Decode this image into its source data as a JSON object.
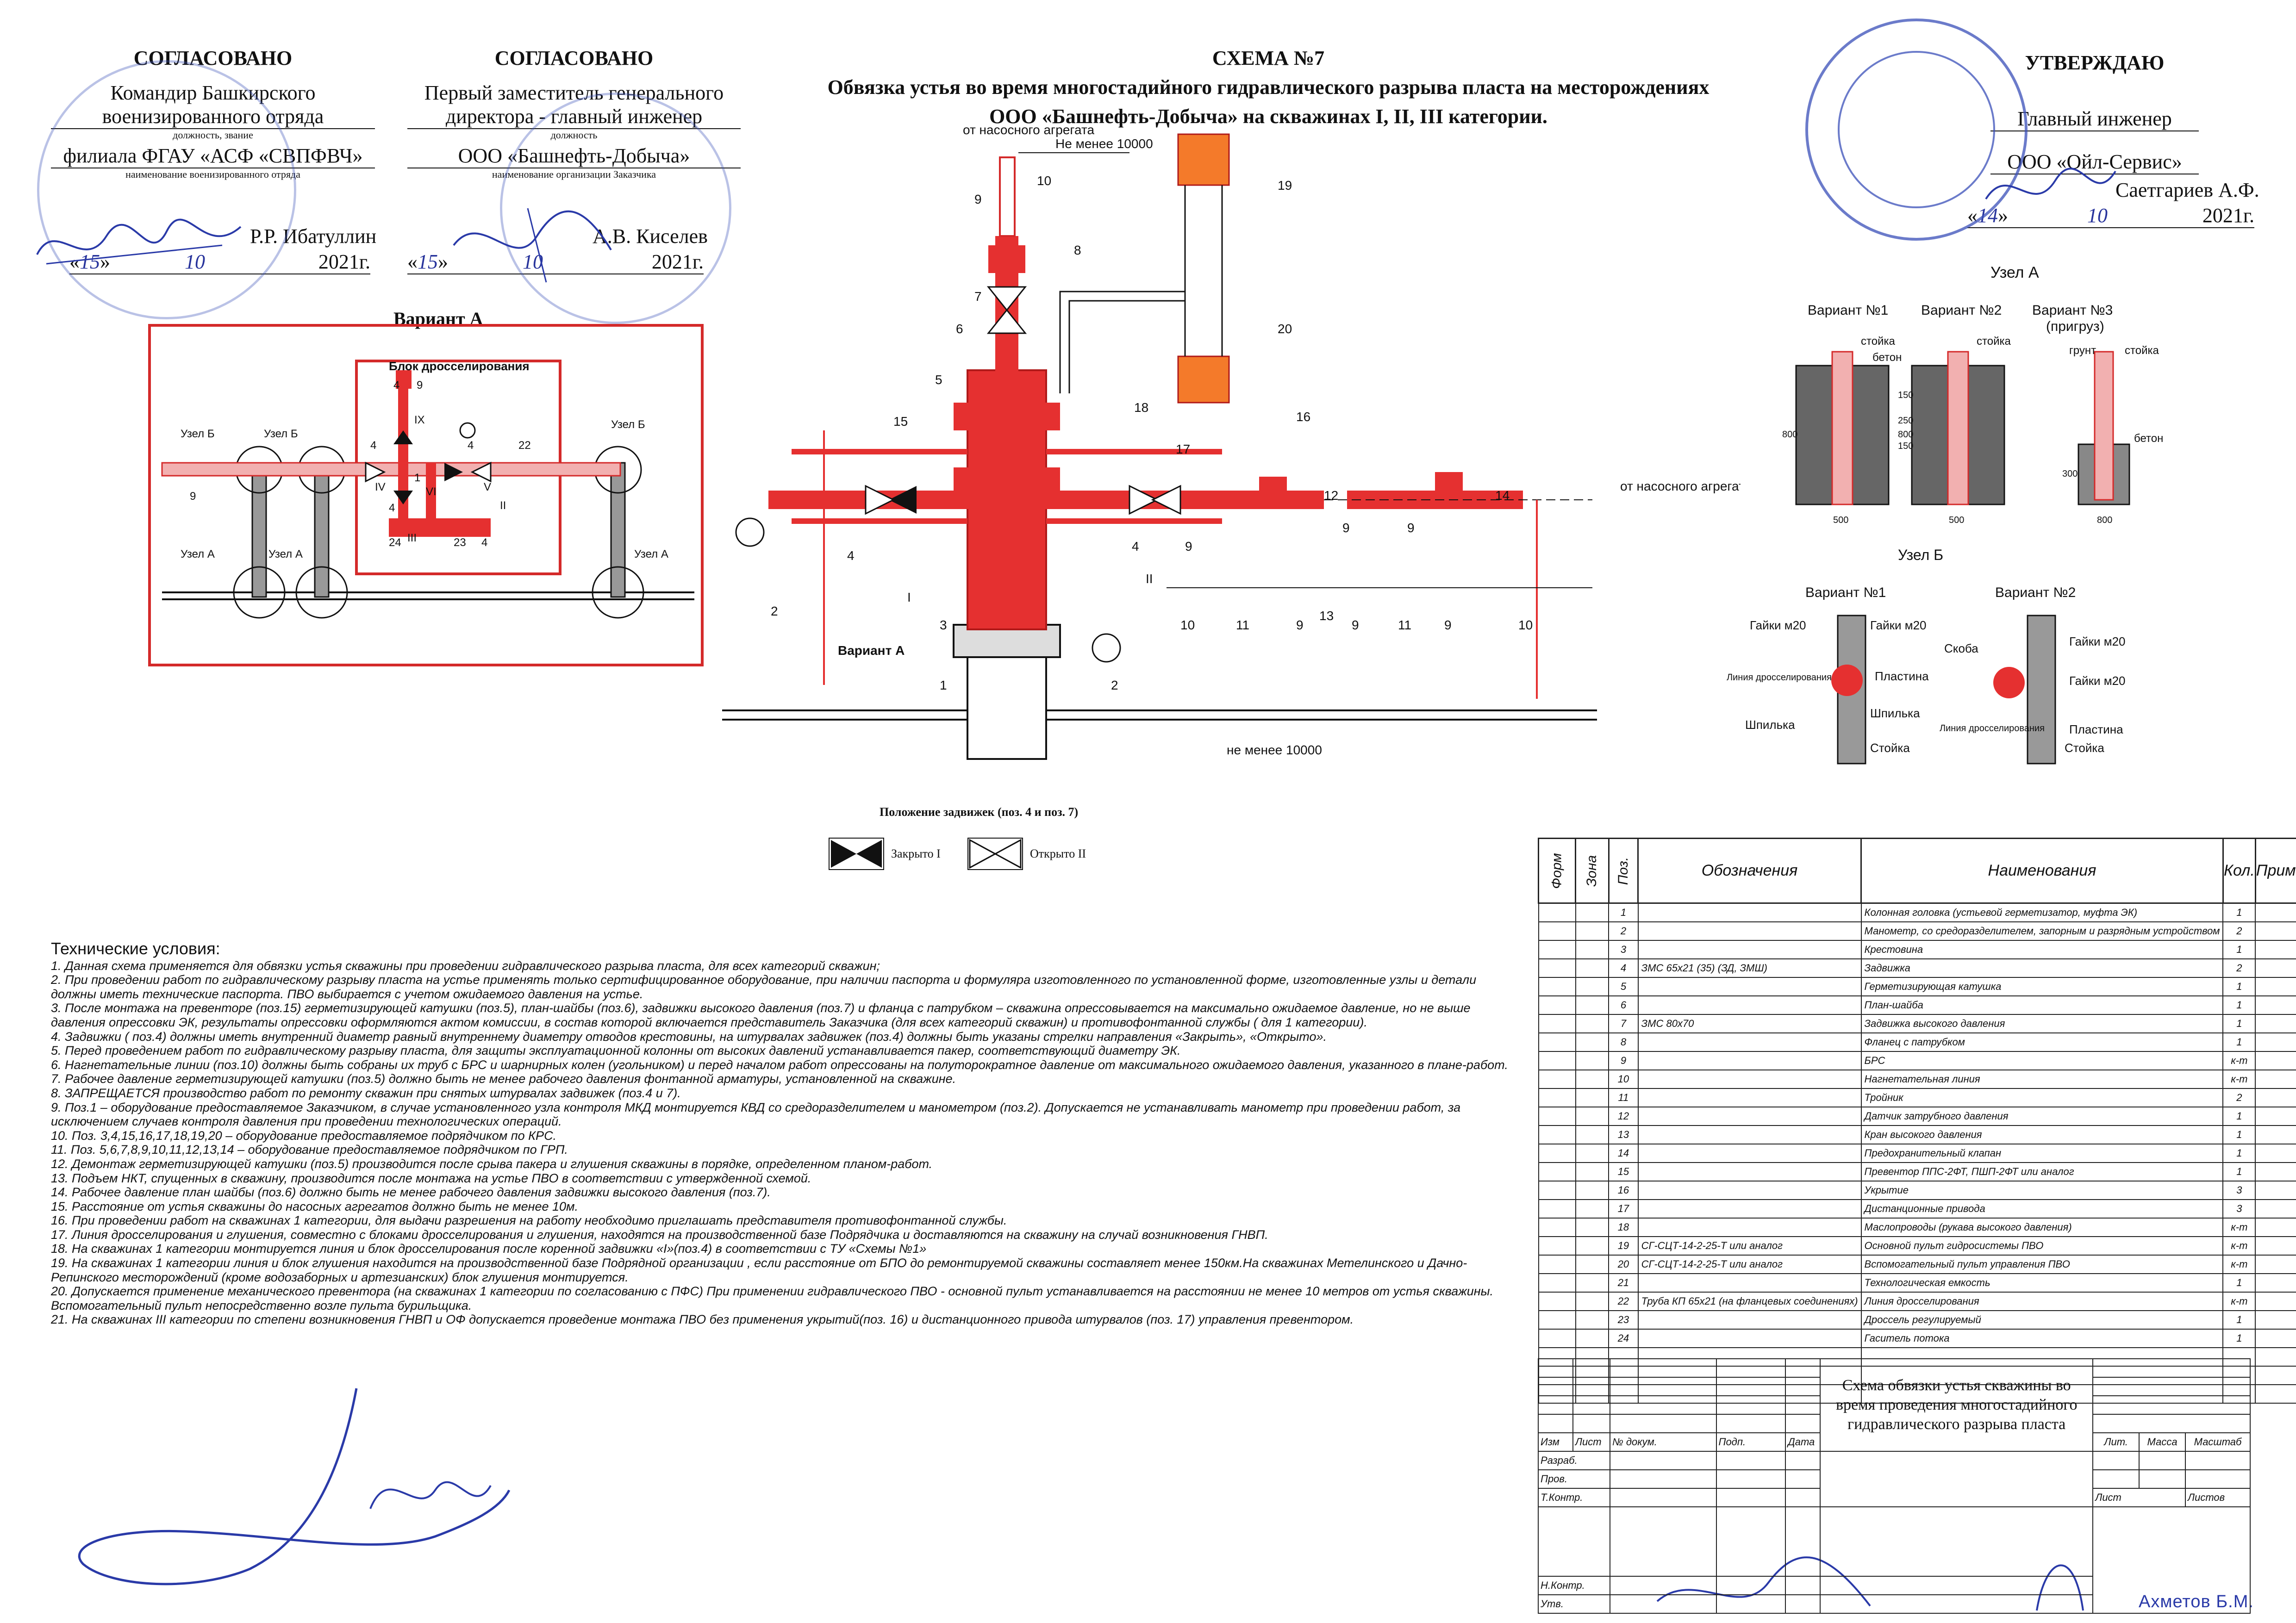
{
  "header": {
    "left1": {
      "title": "СОГЛАСОВАНО",
      "line1": "Командир Башкирского",
      "line2": "военизированного отряда",
      "caption1": "должность, звание",
      "line3": "филиала ФГАУ «АСФ «СВПФВЧ»",
      "caption2": "наименование военизированного отряда",
      "signer": "Р.Р. Ибатуллин",
      "date_open": "«",
      "day": "15",
      "date_mid": "»",
      "month": "10",
      "year": "2021г."
    },
    "left2": {
      "title": "СОГЛАСОВАНО",
      "line1": "Первый заместитель генерального",
      "line2": "директора - главный инженер",
      "caption1": "должность",
      "line3": "ООО «Башнефть-Добыча»",
      "caption2": "наименование организации Заказчика",
      "signer": "А.В. Киселев",
      "date_open": "«",
      "day": "15",
      "date_mid": "»",
      "month": "10",
      "year": "2021г."
    },
    "center": {
      "title": "СХЕМА №7",
      "line1": "Обвязка устья во время многостадийного гидравлического разрыва пласта на месторождениях",
      "line2": "ООО «Башнефть-Добыча» на скважинах I, II, III категории."
    },
    "right": {
      "title": "УТВЕРЖДАЮ",
      "line1": "Главный инженер",
      "line2": "ООО «Ойл-Сервис»",
      "signer": "Саетгариев А.Ф.",
      "date_open": "«",
      "day": "14",
      "date_mid": "»",
      "month": "10",
      "year": "2021г."
    }
  },
  "variant_a": {
    "title": "Вариант А",
    "block_title": "Блок дросселирования",
    "labels": [
      "Узел Б",
      "Узел Б",
      "Узел Б",
      "Узел А",
      "Узел А",
      "Узел А"
    ],
    "numbers": [
      "4",
      "9",
      "IX",
      "4",
      "4",
      "22",
      "1",
      "IV",
      "VI",
      "V",
      "II",
      "4",
      "24",
      "23",
      "4",
      "III",
      "9"
    ]
  },
  "main_scheme": {
    "from_pump_top": "от насосного агрегата",
    "from_pump_right": "от насосного агрегата",
    "dist_top": "Не менее 10000",
    "dist_bottom": "не менее 10000",
    "variant_a_label": "Вариант А",
    "callouts": [
      "9",
      "10",
      "8",
      "7",
      "6",
      "5",
      "15",
      "17",
      "16",
      "3",
      "4",
      "I",
      "2",
      "1",
      "2",
      "4",
      "II",
      "10",
      "9",
      "11",
      "9",
      "13",
      "12",
      "9",
      "14",
      "9",
      "9",
      "11",
      "9",
      "10",
      "18",
      "19",
      "20"
    ]
  },
  "node_a": {
    "title": "Узел А",
    "v1": "Вариант №1",
    "v2": "Вариант №2",
    "v3": "Вариант №3",
    "v3b": "(пригруз)",
    "stoika": "стойка",
    "beton": "бетон",
    "grunt": "грунт",
    "d150a": "150",
    "d250": "250",
    "d150b": "150",
    "d800": "800",
    "d500": "500",
    "d300": "300",
    "d800b": "800"
  },
  "node_b": {
    "title": "Узел Б",
    "v1": "Вариант №1",
    "v2": "Вариант №2",
    "gaiki1": "Гайки м20",
    "gaiki2": "Гайки м20",
    "gaiki3": "Гайки м20",
    "gaiki4": "Гайки м20",
    "line": "Линия дросселирования",
    "plastina": "Пластина",
    "shpilka": "Шпилька",
    "shpilka2": "Шпилька",
    "stoika": "Стойка",
    "stoika2": "Стойка",
    "skoba": "Скоба",
    "plastina2": "Пластина"
  },
  "valve_pos": {
    "title": "Положение задвижек (поз. 4 и поз. 7)",
    "closed": "Закрыто I",
    "open": "Открыто  II"
  },
  "tech": {
    "title": "Технические условия:",
    "items": [
      "1. Данная схема применяется для обвязки устья скважины при проведении гидравлического разрыва пласта, для всех категорий скважин;",
      "2. При проведении работ по гидравлическому разрыву пласта на устье применять только сертифицированное оборудование, при наличии паспорта и формуляра изготовленного по установленной форме, изготовленные узлы и детали  должны иметь технические паспорта. ПВО выбирается с учетом ожидаемого давления на устье.",
      "3. После монтажа на превенторе (поз.15) герметизирующей катушки (поз.5), план-шайбы (поз.6), задвижки высокого давления (поз.7) и фланца с патрубком – скважина опрессовывается на максимально ожидаемое давление, но не выше давления опрессовки ЭК, результаты опрессовки оформляются актом комиссии, в состав которой включается представитель Заказчика (для всех категорий скважин) и противофонтанной службы ( для 1 категории).",
      "4. Задвижки ( поз.4) должны иметь внутренний диаметр равный внутреннему диаметру отводов крестовины, на штурвалах задвижек (поз.4) должны быть указаны стрелки направления «Закрыть», «Открыто».",
      "5. Перед проведением работ по гидравлическому разрыву пласта, для защиты эксплуатационной колонны от высоких давлений устанавливается пакер, соответствующий диаметру ЭК.",
      "6. Нагнетательные линии (поз.10) должны быть собраны их труб с БРС и шарнирных колен (угольником) и перед началом работ опрессованы на полуторократное давление от максимального ожидаемого давления, указанного в плане-работ.",
      "7. Рабочее давление герметизирующей катушки (поз.5) должно быть не менее рабочего давления фонтанной арматуры, установленной на скважине.",
      "8. ЗАПРЕЩАЕТСЯ производство работ по ремонту скважин при снятых штурвалах задвижек (поз.4 и 7).",
      "9. Поз.1 – оборудование предоставляемое Заказчиком, в случае установленного узла  контроля МКД монтируется КВД со средоразделителем и манометром (поз.2). Допускается не устанавливать манометр при проведении работ, за исключением случаев контроля давления при проведении технологических операций.",
      "10. Поз. 3,4,15,16,17,18,19,20 – оборудование предоставляемое подрядчиком по КРС.",
      "11. Поз. 5,6,7,8,9,10,11,12,13,14 – оборудование предоставляемое подрядчиком по ГРП.",
      "12. Демонтаж герметизирующей катушки (поз.5) производится после срыва пакера и глушения скважины в порядке, определенном планом-работ.",
      "13. Подъем НКТ, спущенных в скважину, производится после монтажа на устье ПВО в соответствии с утвержденной схемой.",
      "14. Рабочее давление план шайбы (поз.6) должно быть не менее рабочего давления задвижки высокого давления (поз.7).",
      "15. Расстояние от устья скважины до насосных агрегатов должно быть не менее 10м.",
      "16. При проведении работ на скважинах 1 категории, для выдачи разрешения на работу необходимо приглашать представителя противофонтанной службы.",
      "17. Линия дросселирования и глушения, совместно с блоками дросселирования и глушения, находятся на производственной базе Подрядчика и доставляются на скважину на случай возникновения ГНВП.",
      "18. На скважинах 1 категории монтируется линия и блок дросселирования после коренной задвижки «I»(поз.4) в соответствии с ТУ «Схемы №1»",
      "19. На скважинах 1 категории линия и блок глушения находится на производственной базе Подрядной организации , если расстояние от БПО до ремонтируемой скважины составляет менее 150км.На скважинах Метелинского и Дачно-Репинского месторождений (кроме водозаборных и артезианских) блок глушения монтируется.",
      "20. Допускается применение механического превентора (на скважинах 1 категории по согласованию с ПФС) При применении гидравлического ПВО - основной пульт устанавливается на расстоянии не менее 10 метров от устья скважины. Вспомогательный пульт непосредственно возле пульта бурильщика.",
      "21. На скважинах III категории по степени возникновения ГНВП и ОФ допускается проведение монтажа ПВО без применения укрытий(поз. 16) и дистанционного привода штурвалов (поз. 17) управления превентором."
    ]
  },
  "spec": {
    "headers": [
      "Форм",
      "Зона",
      "Поз.",
      "Обозначения",
      "Наименования",
      "Кол.",
      "Примеч."
    ],
    "rows": [
      [
        "",
        "",
        "1",
        "",
        "Колонная головка (устьевой герметизатор, муфта ЭК)",
        "1",
        ""
      ],
      [
        "",
        "",
        "2",
        "",
        "Манометр, со средоразделителем, запорным и разрядным устройством",
        "2",
        ""
      ],
      [
        "",
        "",
        "3",
        "",
        "Крестовина",
        "1",
        ""
      ],
      [
        "",
        "",
        "4",
        "ЗМС 65х21 (35) (ЗД, ЗМШ)",
        "Задвижка",
        "2",
        ""
      ],
      [
        "",
        "",
        "5",
        "",
        "Герметизирующая катушка",
        "1",
        ""
      ],
      [
        "",
        "",
        "6",
        "",
        "План-шайба",
        "1",
        ""
      ],
      [
        "",
        "",
        "7",
        "ЗМС 80х70",
        "Задвижка высокого давления",
        "1",
        ""
      ],
      [
        "",
        "",
        "8",
        "",
        "Фланец с патрубком",
        "1",
        ""
      ],
      [
        "",
        "",
        "9",
        "",
        "БРС",
        "к-т",
        ""
      ],
      [
        "",
        "",
        "10",
        "",
        "Нагнетательная линия",
        "к-т",
        ""
      ],
      [
        "",
        "",
        "11",
        "",
        "Тройник",
        "2",
        ""
      ],
      [
        "",
        "",
        "12",
        "",
        "Датчик затрубного давления",
        "1",
        ""
      ],
      [
        "",
        "",
        "13",
        "",
        "Кран высокого давления",
        "1",
        ""
      ],
      [
        "",
        "",
        "14",
        "",
        "Предохранительный клапан",
        "1",
        ""
      ],
      [
        "",
        "",
        "15",
        "",
        "Превентор ППС-2ФТ, ПШП-2ФТ или аналог",
        "1",
        ""
      ],
      [
        "",
        "",
        "16",
        "",
        "Укрытие",
        "3",
        ""
      ],
      [
        "",
        "",
        "17",
        "",
        "Дистанционные привода",
        "3",
        ""
      ],
      [
        "",
        "",
        "18",
        "",
        "Маслопроводы (рукава высокого давления)",
        "к-т",
        ""
      ],
      [
        "",
        "",
        "19",
        "СГ-СЦТ-14-2-25-Т или аналог",
        "Основной пульт гидросистемы ПВО",
        "к-т",
        ""
      ],
      [
        "",
        "",
        "20",
        "СГ-СЦТ-14-2-25-Т или аналог",
        "Вспомогательный пульт управления ПВО",
        "к-т",
        ""
      ],
      [
        "",
        "",
        "21",
        "",
        "Технологическая емкость",
        "1",
        ""
      ],
      [
        "",
        "",
        "22",
        "Труба КП 65х21 (на фланцевых соединениях)",
        "Линия дросселирования",
        "к-т",
        ""
      ],
      [
        "",
        "",
        "23",
        "",
        "Дроссель регулируемый",
        "1",
        ""
      ],
      [
        "",
        "",
        "24",
        "",
        "Гаситель потока",
        "1",
        ""
      ]
    ]
  },
  "stamp": {
    "cols": [
      "Изм",
      "Лист",
      "№ докум.",
      "Подп.",
      "Дата"
    ],
    "rows": [
      "Разраб.",
      "Пров.",
      "Т.Контр.",
      "",
      "Н.Контр.",
      "Утв."
    ],
    "title": "Схема обвязки устья скважины во время проведения многостадийного гидравлического разрыва пласта",
    "lit": "Лит.",
    "massa": "Масса",
    "masshtab": "Масштаб",
    "list": "Лист",
    "listov": "Листов",
    "stamp_name": "Ахметов Б.М."
  }
}
